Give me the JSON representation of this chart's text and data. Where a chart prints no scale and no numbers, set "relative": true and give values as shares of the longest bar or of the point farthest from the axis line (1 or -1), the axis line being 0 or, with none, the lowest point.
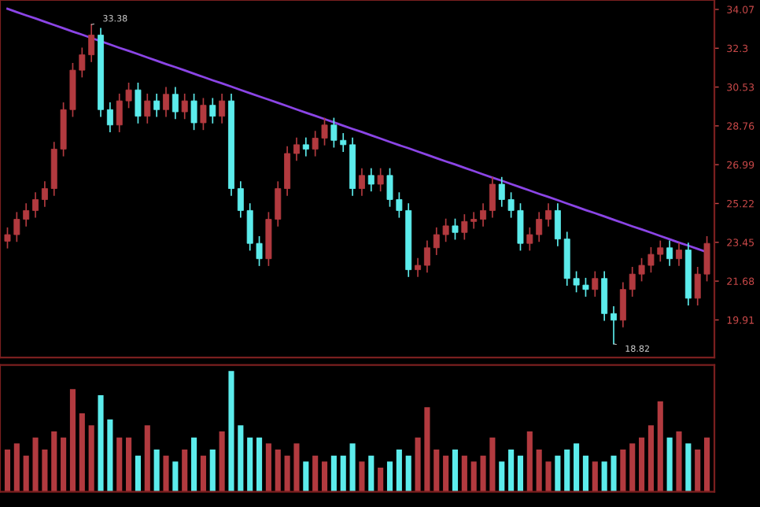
{
  "chart_data": [
    {
      "type": "candlestick",
      "categories": [
        null,
        null,
        null,
        null,
        null,
        null,
        null,
        null,
        null,
        null,
        null,
        null,
        null,
        null,
        null,
        null,
        null,
        null,
        null,
        null,
        null,
        null,
        null,
        null,
        null,
        null,
        null,
        null,
        null,
        null,
        null,
        null,
        null,
        null,
        null,
        null,
        null,
        null,
        null,
        null,
        null,
        null,
        null,
        null,
        null,
        null,
        null,
        null,
        null,
        null,
        null,
        null,
        null,
        null,
        null,
        null,
        null,
        null,
        null,
        null,
        null,
        null,
        null,
        null,
        null,
        null,
        null,
        null,
        null,
        null,
        null,
        null,
        null,
        null,
        null,
        null
      ],
      "ohlc": [
        [
          23.5,
          24.1,
          23.2,
          23.8
        ],
        [
          23.8,
          24.8,
          23.5,
          24.5
        ],
        [
          24.5,
          25.2,
          24.2,
          24.9
        ],
        [
          24.9,
          25.7,
          24.6,
          25.4
        ],
        [
          25.4,
          26.2,
          25.1,
          25.9
        ],
        [
          25.9,
          28.0,
          25.6,
          27.7
        ],
        [
          27.7,
          29.8,
          27.4,
          29.5
        ],
        [
          29.5,
          31.6,
          29.2,
          31.3
        ],
        [
          31.3,
          32.3,
          31.0,
          32.0
        ],
        [
          32.0,
          33.38,
          31.7,
          32.9
        ],
        [
          32.9,
          33.2,
          29.2,
          29.5
        ],
        [
          29.5,
          29.8,
          28.5,
          28.8
        ],
        [
          28.8,
          30.2,
          28.5,
          29.9
        ],
        [
          29.9,
          30.7,
          29.6,
          30.4
        ],
        [
          30.4,
          30.7,
          28.9,
          29.2
        ],
        [
          29.2,
          30.2,
          28.9,
          29.9
        ],
        [
          29.9,
          30.2,
          29.2,
          29.5
        ],
        [
          29.5,
          30.5,
          29.2,
          30.2
        ],
        [
          30.2,
          30.5,
          29.1,
          29.4
        ],
        [
          29.4,
          30.2,
          29.1,
          29.9
        ],
        [
          29.9,
          30.2,
          28.6,
          28.9
        ],
        [
          28.9,
          30.0,
          28.6,
          29.7
        ],
        [
          29.7,
          30.0,
          28.9,
          29.2
        ],
        [
          29.2,
          30.2,
          28.9,
          29.9
        ],
        [
          29.9,
          30.2,
          25.6,
          25.9
        ],
        [
          25.9,
          26.2,
          24.6,
          24.9
        ],
        [
          24.9,
          25.2,
          23.1,
          23.4
        ],
        [
          23.4,
          23.7,
          22.4,
          22.7
        ],
        [
          22.7,
          24.8,
          22.4,
          24.5
        ],
        [
          24.5,
          26.2,
          24.2,
          25.9
        ],
        [
          25.9,
          27.8,
          25.6,
          27.5
        ],
        [
          27.5,
          28.2,
          27.2,
          27.9
        ],
        [
          27.9,
          28.2,
          27.4,
          27.7
        ],
        [
          27.7,
          28.5,
          27.4,
          28.2
        ],
        [
          28.2,
          29.1,
          27.9,
          28.8
        ],
        [
          28.8,
          29.1,
          27.8,
          28.1
        ],
        [
          28.1,
          28.4,
          27.6,
          27.9
        ],
        [
          27.9,
          28.2,
          25.6,
          25.9
        ],
        [
          25.9,
          26.8,
          25.6,
          26.5
        ],
        [
          26.5,
          26.8,
          25.8,
          26.1
        ],
        [
          26.1,
          26.8,
          25.8,
          26.5
        ],
        [
          26.5,
          26.8,
          25.1,
          25.4
        ],
        [
          25.4,
          25.7,
          24.6,
          24.9
        ],
        [
          24.9,
          25.2,
          21.9,
          22.2
        ],
        [
          22.2,
          22.7,
          21.9,
          22.4
        ],
        [
          22.4,
          23.5,
          22.1,
          23.2
        ],
        [
          23.2,
          24.1,
          22.9,
          23.8
        ],
        [
          23.8,
          24.5,
          23.5,
          24.2
        ],
        [
          24.2,
          24.5,
          23.6,
          23.9
        ],
        [
          23.9,
          24.7,
          23.6,
          24.4
        ],
        [
          24.4,
          24.8,
          24.1,
          24.5
        ],
        [
          24.5,
          25.2,
          24.2,
          24.9
        ],
        [
          24.9,
          26.4,
          24.6,
          26.1
        ],
        [
          26.1,
          26.4,
          25.1,
          25.4
        ],
        [
          25.4,
          25.7,
          24.6,
          24.9
        ],
        [
          24.9,
          25.2,
          23.1,
          23.4
        ],
        [
          23.4,
          24.1,
          23.1,
          23.8
        ],
        [
          23.8,
          24.8,
          23.5,
          24.5
        ],
        [
          24.5,
          25.2,
          24.2,
          24.9
        ],
        [
          24.9,
          25.2,
          23.3,
          23.6
        ],
        [
          23.6,
          23.9,
          21.5,
          21.8
        ],
        [
          21.8,
          22.1,
          21.2,
          21.5
        ],
        [
          21.5,
          21.8,
          21.0,
          21.3
        ],
        [
          21.3,
          22.1,
          21.0,
          21.8
        ],
        [
          21.8,
          22.1,
          19.9,
          20.2
        ],
        [
          20.2,
          20.5,
          18.82,
          19.9
        ],
        [
          19.9,
          21.6,
          19.6,
          21.3
        ],
        [
          21.3,
          22.3,
          21.0,
          22.0
        ],
        [
          22.0,
          22.7,
          21.7,
          22.4
        ],
        [
          22.4,
          23.2,
          22.1,
          22.9
        ],
        [
          22.9,
          23.5,
          22.6,
          23.2
        ],
        [
          23.2,
          23.5,
          22.4,
          22.7
        ],
        [
          22.7,
          23.4,
          22.4,
          23.1
        ],
        [
          23.1,
          23.4,
          20.6,
          20.9
        ],
        [
          20.9,
          22.3,
          20.6,
          22.0
        ],
        [
          22.0,
          23.7,
          21.7,
          23.4
        ]
      ],
      "colors": [
        "#b23a3f",
        "#b23a3f",
        "#b23a3f",
        "#b23a3f",
        "#b23a3f",
        "#b23a3f",
        "#b23a3f",
        "#b23a3f",
        "#b23a3f",
        "#b23a3f",
        "#5cecec",
        "#5cecec",
        "#b23a3f",
        "#b23a3f",
        "#5cecec",
        "#b23a3f",
        "#5cecec",
        "#b23a3f",
        "#5cecec",
        "#b23a3f",
        "#5cecec",
        "#b23a3f",
        "#5cecec",
        "#b23a3f",
        "#5cecec",
        "#5cecec",
        "#5cecec",
        "#5cecec",
        "#b23a3f",
        "#b23a3f",
        "#b23a3f",
        "#b23a3f",
        "#5cecec",
        "#b23a3f",
        "#b23a3f",
        "#5cecec",
        "#5cecec",
        "#5cecec",
        "#b23a3f",
        "#5cecec",
        "#b23a3f",
        "#5cecec",
        "#5cecec",
        "#5cecec",
        "#b23a3f",
        "#b23a3f",
        "#b23a3f",
        "#b23a3f",
        "#5cecec",
        "#b23a3f",
        "#b23a3f",
        "#b23a3f",
        "#b23a3f",
        "#5cecec",
        "#5cecec",
        "#5cecec",
        "#b23a3f",
        "#b23a3f",
        "#b23a3f",
        "#5cecec",
        "#5cecec",
        "#5cecec",
        "#5cecec",
        "#b23a3f",
        "#5cecec",
        "#5cecec",
        "#b23a3f",
        "#b23a3f",
        "#b23a3f",
        "#b23a3f",
        "#b23a3f",
        "#5cecec",
        "#b23a3f",
        "#5cecec",
        "#b23a3f",
        "#b23a3f"
      ],
      "series": [
        {
          "type": "line",
          "values": [
            34.1,
            33.95,
            33.8,
            33.66,
            33.51,
            33.36,
            33.21,
            33.06,
            32.92,
            32.77,
            32.62,
            32.47,
            32.32,
            32.18,
            32.03,
            31.88,
            31.73,
            31.58,
            31.44,
            31.29,
            31.14,
            30.99,
            30.84,
            30.7,
            30.55,
            30.4,
            30.25,
            30.1,
            29.96,
            29.81,
            29.66,
            29.51,
            29.36,
            29.22,
            29.07,
            28.92,
            28.77,
            28.62,
            28.48,
            28.33,
            28.18,
            28.03,
            27.88,
            27.74,
            27.59,
            27.44,
            27.29,
            27.14,
            27.0,
            26.85,
            26.7,
            26.55,
            26.4,
            26.26,
            26.11,
            25.96,
            25.81,
            25.66,
            25.52,
            25.37,
            25.22,
            25.07,
            24.92,
            24.78,
            24.63,
            24.48,
            24.33,
            24.18,
            24.04,
            23.89,
            23.74,
            23.59,
            23.44,
            23.3,
            23.15,
            23.0
          ],
          "color": "#8b45e6"
        }
      ],
      "ylim": [
        18.2,
        34.5
      ],
      "yticks": [
        19.91,
        21.68,
        23.45,
        25.22,
        26.99,
        28.76,
        30.53,
        32.3,
        34.07
      ],
      "tick_labels": "y",
      "annotations": [
        "33.38",
        "18.82"
      ]
    },
    {
      "type": "bar",
      "relative": true,
      "tick_labels": false,
      "categories": [
        null,
        null,
        null,
        null,
        null,
        null,
        null,
        null,
        null,
        null,
        null,
        null,
        null,
        null,
        null,
        null,
        null,
        null,
        null,
        null,
        null,
        null,
        null,
        null,
        null,
        null,
        null,
        null,
        null,
        null,
        null,
        null,
        null,
        null,
        null,
        null,
        null,
        null,
        null,
        null,
        null,
        null,
        null,
        null,
        null,
        null,
        null,
        null,
        null,
        null,
        null,
        null,
        null,
        null,
        null,
        null,
        null,
        null,
        null,
        null,
        null,
        null,
        null,
        null,
        null,
        null,
        null,
        null,
        null,
        null,
        null,
        null,
        null,
        null,
        null,
        null
      ],
      "values": [
        0.35,
        0.4,
        0.3,
        0.45,
        0.35,
        0.5,
        0.45,
        0.85,
        0.65,
        0.55,
        0.8,
        0.6,
        0.45,
        0.45,
        0.3,
        0.55,
        0.35,
        0.3,
        0.25,
        0.35,
        0.45,
        0.3,
        0.35,
        0.5,
        1.0,
        0.55,
        0.45,
        0.45,
        0.4,
        0.35,
        0.3,
        0.4,
        0.25,
        0.3,
        0.25,
        0.3,
        0.3,
        0.4,
        0.25,
        0.3,
        0.2,
        0.25,
        0.35,
        0.3,
        0.45,
        0.7,
        0.35,
        0.3,
        0.35,
        0.3,
        0.25,
        0.3,
        0.45,
        0.25,
        0.35,
        0.3,
        0.5,
        0.35,
        0.25,
        0.3,
        0.35,
        0.4,
        0.3,
        0.25,
        0.25,
        0.3,
        0.35,
        0.4,
        0.45,
        0.55,
        0.75,
        0.45,
        0.5,
        0.4,
        0.35,
        0.45
      ],
      "colors": [
        "#b23a3f",
        "#b23a3f",
        "#b23a3f",
        "#b23a3f",
        "#b23a3f",
        "#b23a3f",
        "#b23a3f",
        "#b23a3f",
        "#b23a3f",
        "#b23a3f",
        "#5cecec",
        "#5cecec",
        "#b23a3f",
        "#b23a3f",
        "#5cecec",
        "#b23a3f",
        "#5cecec",
        "#b23a3f",
        "#5cecec",
        "#b23a3f",
        "#5cecec",
        "#b23a3f",
        "#5cecec",
        "#b23a3f",
        "#5cecec",
        "#5cecec",
        "#5cecec",
        "#5cecec",
        "#b23a3f",
        "#b23a3f",
        "#b23a3f",
        "#b23a3f",
        "#5cecec",
        "#b23a3f",
        "#b23a3f",
        "#5cecec",
        "#5cecec",
        "#5cecec",
        "#b23a3f",
        "#5cecec",
        "#b23a3f",
        "#5cecec",
        "#5cecec",
        "#5cecec",
        "#b23a3f",
        "#b23a3f",
        "#b23a3f",
        "#b23a3f",
        "#5cecec",
        "#b23a3f",
        "#b23a3f",
        "#b23a3f",
        "#b23a3f",
        "#5cecec",
        "#5cecec",
        "#5cecec",
        "#b23a3f",
        "#b23a3f",
        "#b23a3f",
        "#5cecec",
        "#5cecec",
        "#5cecec",
        "#5cecec",
        "#b23a3f",
        "#5cecec",
        "#5cecec",
        "#b23a3f",
        "#b23a3f",
        "#b23a3f",
        "#b23a3f",
        "#b23a3f",
        "#5cecec",
        "#b23a3f",
        "#5cecec",
        "#b23a3f",
        "#b23a3f"
      ]
    }
  ]
}
